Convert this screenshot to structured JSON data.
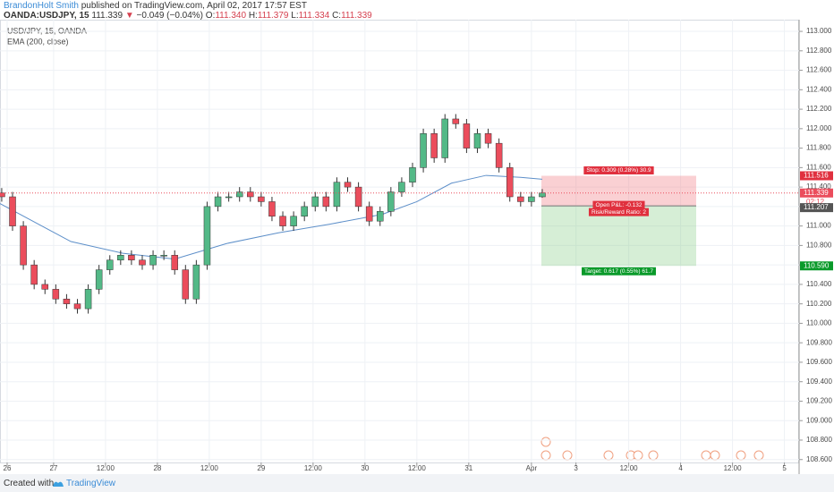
{
  "header": {
    "author": "BrandonHolt Smith",
    "published": "published on TradingView.com, April 02, 2017 17:57 EST",
    "symbol": "OANDA:USDJPY, 15",
    "last": "111.339",
    "arrow": "▼",
    "change": "−0.049 (−0.04%)",
    "o_label": "O:",
    "o": "111.340",
    "h_label": "H:",
    "h": "111.379",
    "l_label": "L:",
    "l": "111.334",
    "c_label": "C:",
    "c": "111.339"
  },
  "footer": {
    "created": "Created with",
    "brand": "TradingView"
  },
  "chart_data": {
    "type": "candlestick",
    "title": "USD/JPY, 15, OANDA",
    "xlim": [
      -12.4,
      172.4
    ],
    "ylim": [
      108.57,
      113.12
    ],
    "xticks": [
      {
        "value": -10.75,
        "label": "26"
      },
      {
        "value": 0,
        "label": "27"
      },
      {
        "value": 12,
        "label": "12:00"
      },
      {
        "value": 24,
        "label": "28"
      },
      {
        "value": 36,
        "label": "12:00"
      },
      {
        "value": 48,
        "label": "29"
      },
      {
        "value": 60,
        "label": "12:00"
      },
      {
        "value": 72,
        "label": "30"
      },
      {
        "value": 84,
        "label": "12:00"
      },
      {
        "value": 96,
        "label": "31"
      },
      {
        "value": 110.5,
        "label": "Apr"
      },
      {
        "value": 120.8,
        "label": "3"
      },
      {
        "value": 133,
        "label": "12:00"
      },
      {
        "value": 145,
        "label": "4"
      },
      {
        "value": 157,
        "label": "12:00"
      },
      {
        "value": 169,
        "label": "5"
      }
    ],
    "yticks": [
      {
        "value": 108.6,
        "label": "108.600"
      },
      {
        "value": 108.8,
        "label": "108.800"
      },
      {
        "value": 109.0,
        "label": "109.000"
      },
      {
        "value": 109.2,
        "label": "109.200"
      },
      {
        "value": 109.4,
        "label": "109.400"
      },
      {
        "value": 109.6,
        "label": "109.600"
      },
      {
        "value": 109.8,
        "label": "109.800"
      },
      {
        "value": 110.0,
        "label": "110.000"
      },
      {
        "value": 110.2,
        "label": "110.200"
      },
      {
        "value": 110.4,
        "label": "110.400"
      },
      {
        "value": 110.6,
        "label": "110.600"
      },
      {
        "value": 110.8,
        "label": "110.800"
      },
      {
        "value": 111.0,
        "label": "111.000"
      },
      {
        "value": 111.2,
        "label": "111.200"
      },
      {
        "value": 111.4,
        "label": "111.400"
      },
      {
        "value": 111.6,
        "label": "111.600"
      },
      {
        "value": 111.8,
        "label": "111.800"
      },
      {
        "value": 112.0,
        "label": "112.000"
      },
      {
        "value": 112.2,
        "label": "112.200"
      },
      {
        "value": 112.4,
        "label": "112.400"
      },
      {
        "value": 112.6,
        "label": "112.600"
      },
      {
        "value": 112.8,
        "label": "112.800"
      },
      {
        "value": 113.0,
        "label": "113.000"
      }
    ],
    "grid": true,
    "up_color": "#53b987",
    "down_color": "#eb4d5c",
    "x": [
      -12,
      -9.5,
      -7,
      -4.5,
      -2,
      0.5,
      3,
      5.5,
      8,
      10.5,
      13,
      15.5,
      18,
      20.5,
      23,
      25.5,
      28,
      30.5,
      33,
      35.5,
      38,
      40.5,
      43,
      45.5,
      48,
      50.5,
      53,
      55.5,
      58,
      60.5,
      63,
      65.5,
      68,
      70.5,
      73,
      75.5,
      78,
      80.5,
      83,
      85.5,
      88,
      90.5,
      93,
      95.5,
      98,
      100.5,
      103,
      105.5,
      108,
      110.5,
      113
    ],
    "open": [
      111.34,
      111.3,
      111.0,
      110.6,
      110.4,
      110.35,
      110.25,
      110.2,
      110.15,
      110.35,
      110.55,
      110.65,
      110.7,
      110.65,
      110.6,
      110.7,
      110.7,
      110.55,
      110.25,
      110.6,
      111.2,
      111.3,
      111.3,
      111.35,
      111.3,
      111.25,
      111.1,
      111.0,
      111.1,
      111.2,
      111.3,
      111.2,
      111.45,
      111.4,
      111.2,
      111.05,
      111.15,
      111.35,
      111.45,
      111.6,
      111.95,
      111.7,
      112.1,
      112.05,
      111.8,
      111.95,
      111.85,
      111.6,
      111.3,
      111.25,
      111.3
    ],
    "high": [
      111.39,
      111.35,
      111.05,
      110.65,
      110.45,
      110.4,
      110.3,
      110.25,
      110.4,
      110.6,
      110.7,
      110.75,
      110.75,
      110.7,
      110.75,
      110.75,
      110.75,
      110.6,
      110.65,
      111.25,
      111.35,
      111.35,
      111.4,
      111.4,
      111.35,
      111.3,
      111.15,
      111.15,
      111.25,
      111.35,
      111.35,
      111.5,
      111.5,
      111.45,
      111.25,
      111.2,
      111.4,
      111.5,
      111.65,
      112.0,
      112.0,
      112.15,
      112.15,
      112.1,
      112.0,
      112.0,
      111.9,
      111.65,
      111.35,
      111.35,
      111.38
    ],
    "low": [
      111.25,
      110.95,
      110.55,
      110.35,
      110.3,
      110.2,
      110.15,
      110.1,
      110.1,
      110.3,
      110.5,
      110.6,
      110.6,
      110.55,
      110.55,
      110.65,
      110.5,
      110.2,
      110.2,
      110.55,
      111.15,
      111.25,
      111.25,
      111.25,
      111.2,
      111.05,
      110.95,
      110.95,
      111.05,
      111.15,
      111.15,
      111.15,
      111.35,
      111.15,
      111.0,
      111.0,
      111.1,
      111.3,
      111.4,
      111.55,
      111.65,
      111.65,
      112.0,
      111.75,
      111.75,
      111.8,
      111.55,
      111.25,
      111.2,
      111.2,
      111.29
    ],
    "close": [
      111.3,
      111.0,
      110.6,
      110.4,
      110.35,
      110.25,
      110.2,
      110.15,
      110.35,
      110.55,
      110.65,
      110.7,
      110.65,
      110.6,
      110.7,
      110.7,
      110.55,
      110.25,
      110.6,
      111.2,
      111.3,
      111.3,
      111.35,
      111.3,
      111.25,
      111.1,
      111.0,
      111.1,
      111.2,
      111.3,
      111.2,
      111.45,
      111.4,
      111.2,
      111.05,
      111.15,
      111.35,
      111.45,
      111.6,
      111.95,
      111.7,
      112.1,
      112.05,
      111.8,
      111.95,
      111.85,
      111.6,
      111.3,
      111.25,
      111.3,
      111.34
    ],
    "indicator": {
      "name": "EMA (200, close)",
      "color": "#5d8fc9",
      "x": [
        -12.4,
        4,
        16,
        28,
        40,
        52,
        64,
        76,
        84,
        92,
        100,
        108,
        113
      ],
      "values": [
        111.23,
        110.84,
        110.72,
        110.66,
        110.82,
        110.93,
        111.02,
        111.12,
        111.25,
        111.44,
        111.52,
        111.5,
        111.48
      ]
    },
    "last_price": {
      "value": 111.339,
      "label": "111.339",
      "color": "#eb4d5c",
      "countdown": "02:12"
    },
    "position": {
      "x_start": 112.8,
      "x_end": 148.6,
      "stop": {
        "value": 111.516,
        "label": "111.516"
      },
      "entry": {
        "value": 111.207,
        "label": "111.207"
      },
      "target": {
        "value": 110.59,
        "label": "110.590"
      },
      "stop_text": "Stop: 0.309 (0.28%) 30.9",
      "pnl_text": "Open P&L: -0.132",
      "rr_text": "Risk/Reward Ratio: 2",
      "target_text": "Target: 0.617 (0.55%) 61.7"
    }
  }
}
